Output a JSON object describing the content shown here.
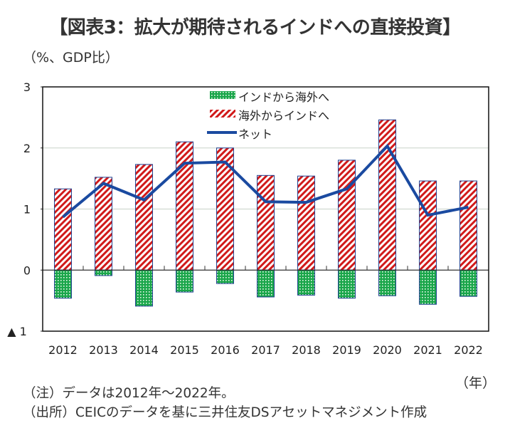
{
  "title": "【図表3：拡大が期待されるインドへの直接投資】",
  "unit_label": "（%、GDP比）",
  "x_unit_label": "（年）",
  "notes": [
    "（注）データは2012年～2022年。",
    "（出所）CEICのデータを基に三井住友DSアセットマネジメント作成"
  ],
  "colors": {
    "outward": "#1aa64a",
    "inward": "#d11a1a",
    "net": "#1a4aa0",
    "bar_border": "#1f3f8f",
    "grid": "#c8d2c8"
  },
  "chart_data": {
    "type": "bar",
    "title": "【図表3：拡大が期待されるインドへの直接投資】",
    "xlabel": "（年）",
    "ylabel": "（%、GDP比）",
    "ylim": [
      -1,
      3
    ],
    "yticks": [
      3,
      2,
      1,
      0,
      -1
    ],
    "ytick_labels": [
      "3",
      "2",
      "1",
      "0",
      "▲ 1"
    ],
    "grid": true,
    "legend_position": "top-center",
    "categories": [
      "2012",
      "2013",
      "2014",
      "2015",
      "2016",
      "2017",
      "2018",
      "2019",
      "2020",
      "2021",
      "2022"
    ],
    "series": [
      {
        "name": "インドから海外へ",
        "type": "bar",
        "pattern": "dotted-green",
        "values": [
          -0.46,
          -0.09,
          -0.59,
          -0.36,
          -0.22,
          -0.44,
          -0.41,
          -0.46,
          -0.42,
          -0.56,
          -0.43
        ]
      },
      {
        "name": "海外からインドへ",
        "type": "bar",
        "pattern": "red-diagonal-stripes",
        "values": [
          1.33,
          1.52,
          1.73,
          2.1,
          2.0,
          1.55,
          1.54,
          1.8,
          2.46,
          1.46,
          1.46
        ]
      },
      {
        "name": "ネット",
        "type": "line",
        "values": [
          0.87,
          1.42,
          1.15,
          1.75,
          1.77,
          1.12,
          1.11,
          1.33,
          2.03,
          0.9,
          1.03
        ]
      }
    ]
  }
}
